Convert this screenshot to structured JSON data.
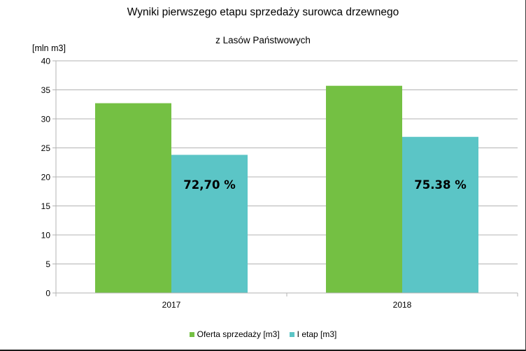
{
  "chart_data": {
    "type": "bar",
    "title": "Wyniki pierwszego etapu sprzedaży surowca drzewnego",
    "subtitle": "z Lasów Państwowych",
    "ylabel": "[mln m3]",
    "xlabel": "",
    "ylim": [
      0,
      40
    ],
    "yticks": [
      0,
      5,
      10,
      15,
      20,
      25,
      30,
      35,
      40
    ],
    "categories": [
      "2017",
      "2018"
    ],
    "series": [
      {
        "name": "Oferta sprzedaży [m3]",
        "color": "#74c043",
        "values": [
          32.7,
          35.7
        ]
      },
      {
        "name": "I etap [m3]",
        "color": "#5bc5c6",
        "values": [
          23.8,
          26.9
        ]
      }
    ],
    "annotations": [
      {
        "category": "2017",
        "series": 1,
        "text": "72,70 %"
      },
      {
        "category": "2018",
        "series": 1,
        "text": "75.38 %"
      }
    ],
    "grid": true,
    "legend": "bottom"
  }
}
